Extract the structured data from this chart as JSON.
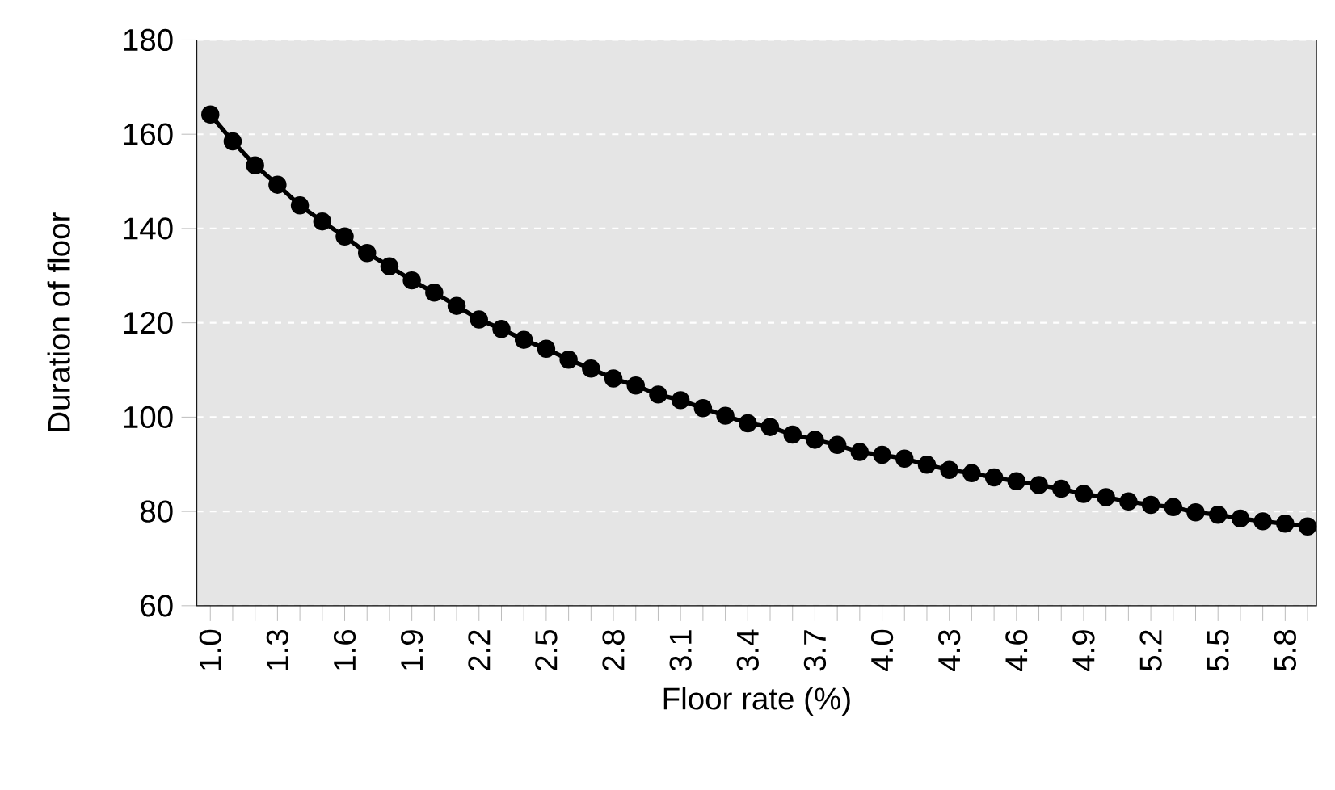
{
  "chart_data": {
    "type": "line",
    "xlabel": "Floor rate (%)",
    "ylabel": "Duration of floor",
    "categories": [
      "1.0",
      null,
      null,
      "1.3",
      null,
      null,
      "1.6",
      null,
      null,
      "1.9",
      null,
      null,
      "2.2",
      null,
      null,
      "2.5",
      null,
      null,
      "2.8",
      null,
      null,
      "3.1",
      null,
      null,
      "3.4",
      null,
      null,
      "3.7",
      null,
      null,
      "4.0",
      null,
      null,
      "4.3",
      null,
      null,
      "4.6",
      null,
      null,
      "4.9",
      null,
      null,
      "5.2",
      null,
      null,
      "5.5",
      null,
      null,
      "5.8",
      null
    ],
    "values": [
      164.2,
      158.5,
      153.4,
      149.3,
      144.9,
      141.5,
      138.3,
      134.8,
      132.0,
      129.0,
      126.4,
      123.6,
      120.7,
      118.7,
      116.4,
      114.5,
      112.2,
      110.3,
      108.2,
      106.7,
      104.8,
      103.6,
      101.9,
      100.3,
      98.7,
      97.9,
      96.3,
      95.2,
      94.1,
      92.6,
      92.0,
      91.2,
      89.9,
      88.8,
      88.1,
      87.2,
      86.4,
      85.6,
      84.8,
      83.7,
      83.0,
      82.1,
      81.4,
      80.9,
      79.8,
      79.3,
      78.5,
      77.9,
      77.4,
      76.8
    ],
    "color": "#000000",
    "marker": "circle",
    "line_style": "solid",
    "grid": "y",
    "ylim": [
      60,
      180
    ],
    "yticks": [
      60,
      80,
      100,
      120,
      140,
      160,
      180
    ]
  }
}
